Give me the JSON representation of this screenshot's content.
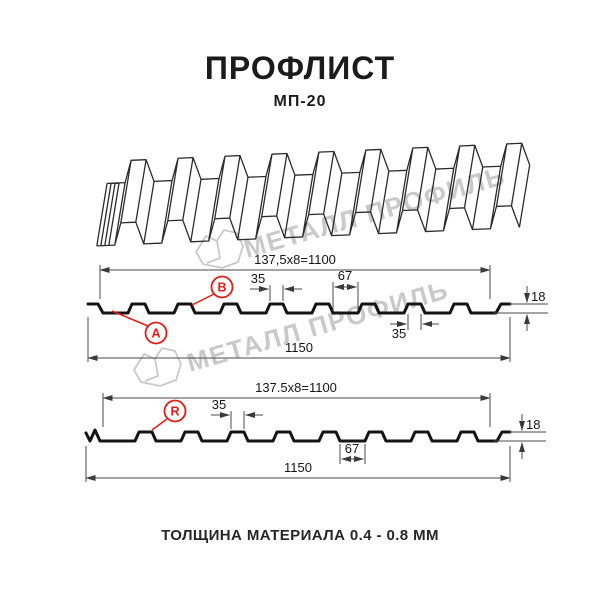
{
  "header": {
    "title": "ПРОФЛИСТ",
    "subtitle": "МП-20"
  },
  "watermark": {
    "text": "МЕТАЛЛ ПРОФИЛЬ"
  },
  "sections": {
    "top": {
      "labels": {
        "a": "A",
        "b": "B"
      },
      "dims": {
        "cover_width": "137,5x8=1100",
        "rib_top_width": "35",
        "valley_width": "67",
        "height": "18",
        "rib_bottom_width": "35",
        "total_width": "1150"
      }
    },
    "bottom": {
      "labels": {
        "r": "R"
      },
      "dims": {
        "cover_width": "137.5x8=1100",
        "rib_top_width": "35",
        "valley_width": "67",
        "height": "18",
        "total_width": "1150"
      }
    }
  },
  "footer": {
    "text": "ТОЛЩИНА МАТЕРИАЛА 0.4 - 0.8 ММ"
  },
  "colors": {
    "accent_red": "#e01e17",
    "line_black": "#161616",
    "dim_gray": "#4a4a4a",
    "watermark_gray": "#c9c9c9"
  }
}
